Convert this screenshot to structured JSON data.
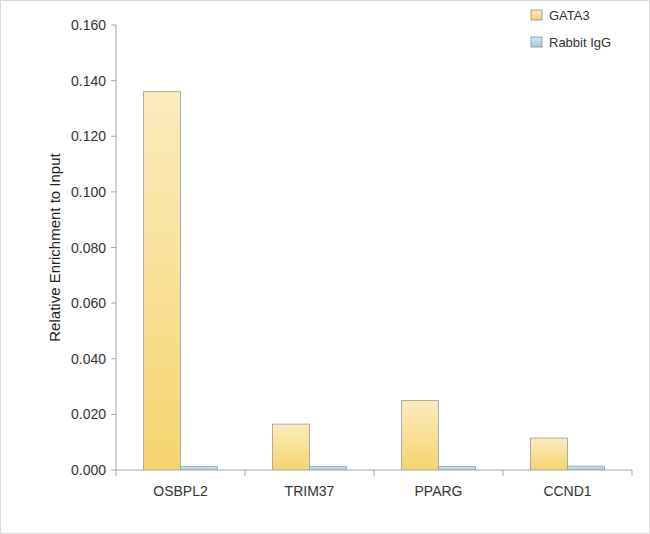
{
  "chart_data": {
    "type": "bar",
    "y_label": "Relative Enrichment to Input",
    "categories": [
      "OSBPL2",
      "TRIM37",
      "PPARG",
      "CCND1"
    ],
    "series": [
      {
        "name": "GATA3",
        "color": "#f5d46e",
        "values": [
          0.136,
          0.0165,
          0.025,
          0.0115
        ]
      },
      {
        "name": "Rabbit IgG",
        "color": "#9ecbe2",
        "values": [
          0.0012,
          0.0012,
          0.0013,
          0.0014
        ]
      }
    ],
    "ylim": [
      0,
      0.16
    ],
    "yticks": [
      {
        "value": 0,
        "label": "0.000"
      },
      {
        "value": 0.02,
        "label": "0.020"
      },
      {
        "value": 0.04,
        "label": "0.040"
      },
      {
        "value": 0.06,
        "label": "0.060"
      },
      {
        "value": 0.08,
        "label": "0.080"
      },
      {
        "value": 0.1,
        "label": "0.100"
      },
      {
        "value": 0.12,
        "label": "0.120"
      },
      {
        "value": 0.14,
        "label": "0.140"
      },
      {
        "value": 0.16,
        "label": "0.160"
      }
    ],
    "grid": false,
    "legend": "top-right"
  }
}
